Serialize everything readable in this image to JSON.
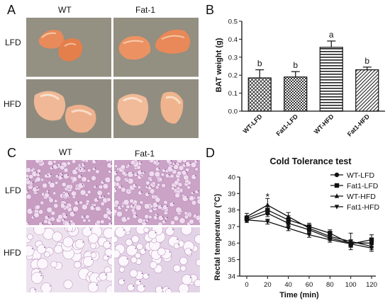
{
  "panels": {
    "A": {
      "label": "A",
      "columns": [
        "WT",
        "Fat-1"
      ],
      "rows": [
        "LFD",
        "HFD"
      ]
    },
    "B": {
      "label": "B",
      "chart_data": {
        "type": "bar",
        "categories": [
          "WT-LFD",
          "Fat1-LFD",
          "WT-HFD",
          "Fat1-HFD"
        ],
        "values": [
          0.185,
          0.19,
          0.355,
          0.23
        ],
        "errors": [
          0.045,
          0.03,
          0.035,
          0.015
        ],
        "significance": [
          "b",
          "b",
          "a",
          "b"
        ],
        "ylabel": "BAT weight (g)",
        "ylim": [
          0,
          0.5
        ],
        "yticks": [
          0.0,
          0.1,
          0.2,
          0.3,
          0.4,
          0.5
        ],
        "ytick_labels": [
          "0.0",
          "0.1",
          "0.2",
          "0.3",
          "0.4",
          "0.5"
        ],
        "patterns": [
          "crosshatch",
          "dotted-check",
          "horizontal-lines",
          "diagonal-lines"
        ]
      }
    },
    "C": {
      "label": "C",
      "columns": [
        "WT",
        "Fat-1"
      ],
      "rows": [
        "LFD",
        "HFD"
      ]
    },
    "D": {
      "label": "D",
      "chart_data": {
        "type": "line",
        "title": "Cold Tolerance test",
        "xlabel": "Time (min)",
        "ylabel": "Rectal temperature (°C)",
        "x": [
          0,
          20,
          40,
          60,
          80,
          100,
          120
        ],
        "xlim": [
          0,
          120
        ],
        "ylim": [
          34,
          40
        ],
        "yticks": [
          34,
          35,
          36,
          37,
          38,
          39,
          40
        ],
        "legend_position": "top-right",
        "annotation": {
          "text": "*",
          "x": 20,
          "y": 38.6
        },
        "series": [
          {
            "name": "WT-LFD",
            "marker": "circle",
            "values": [
              37.4,
              37.8,
              37.2,
              36.8,
              36.3,
              36.0,
              36.0
            ],
            "errors": [
              0.15,
              0.2,
              0.2,
              0.2,
              0.15,
              0.2,
              0.2
            ]
          },
          {
            "name": "Fat1-LFD",
            "marker": "square",
            "values": [
              37.5,
              38.0,
              37.4,
              37.0,
              36.6,
              35.95,
              36.2
            ],
            "errors": [
              0.15,
              0.2,
              0.25,
              0.2,
              0.2,
              0.2,
              0.3
            ]
          },
          {
            "name": "WT-HFD",
            "marker": "triangle-up",
            "values": [
              37.6,
              38.3,
              37.6,
              36.9,
              36.4,
              36.1,
              35.8
            ],
            "errors": [
              0.2,
              0.4,
              0.25,
              0.2,
              0.25,
              0.5,
              0.2
            ]
          },
          {
            "name": "Fat1-HFD",
            "marker": "triangle-down",
            "values": [
              37.4,
              37.3,
              36.9,
              36.5,
              36.2,
              35.95,
              35.7
            ],
            "errors": [
              0.15,
              0.15,
              0.15,
              0.15,
              0.15,
              0.2,
              0.2
            ]
          }
        ]
      }
    }
  }
}
